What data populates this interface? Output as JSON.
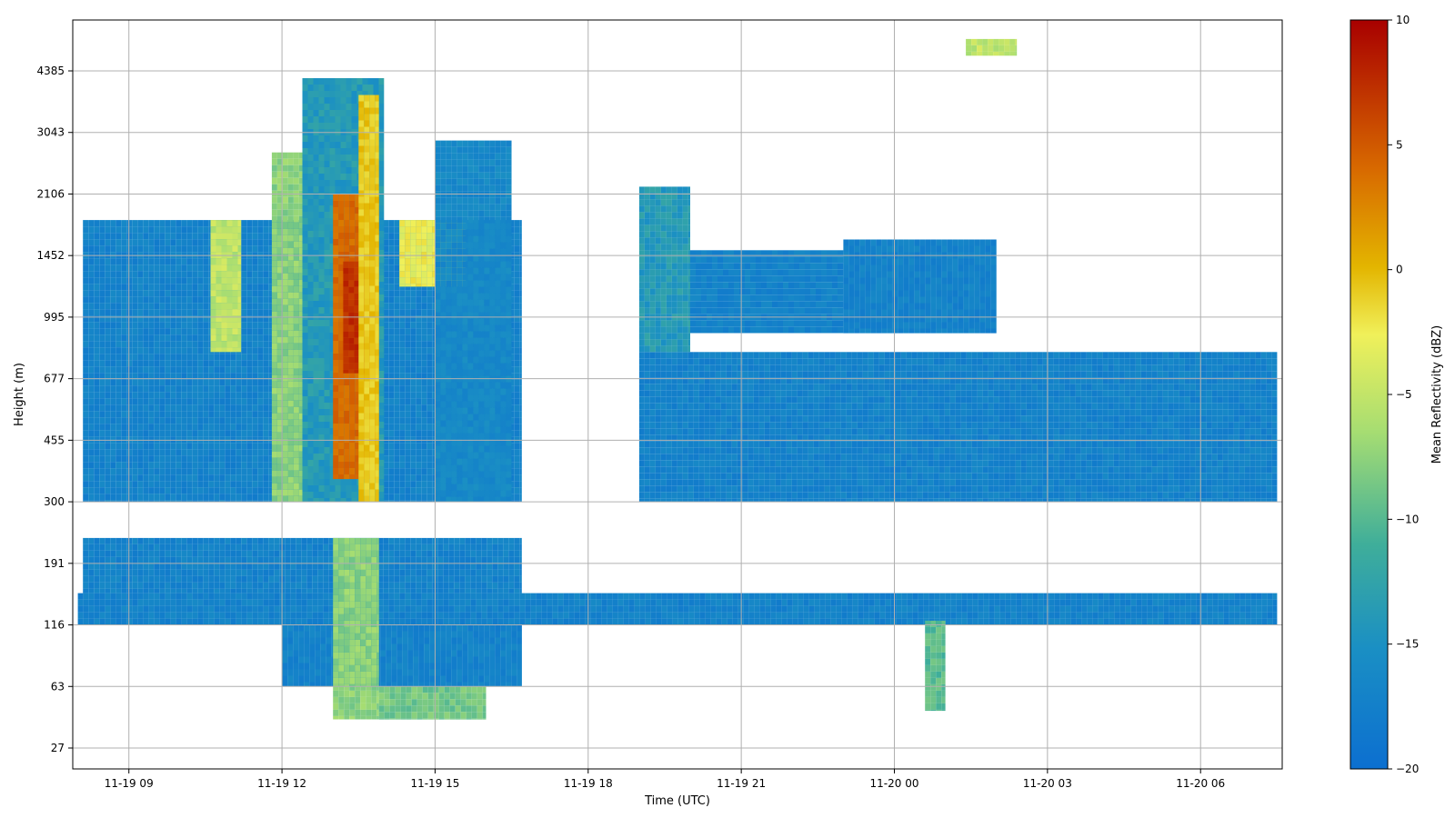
{
  "chart_data": {
    "type": "heatmap",
    "title": "",
    "xlabel": "Time (UTC)",
    "ylabel": "Height (m)",
    "x_range_hours": [
      7.9,
      31.6
    ],
    "x_ticks": [
      {
        "hour": 9,
        "label": "11-19 09"
      },
      {
        "hour": 12,
        "label": "11-19 12"
      },
      {
        "hour": 15,
        "label": "11-19 15"
      },
      {
        "hour": 18,
        "label": "11-19 18"
      },
      {
        "hour": 21,
        "label": "11-19 21"
      },
      {
        "hour": 24,
        "label": "11-20 00"
      },
      {
        "hour": 27,
        "label": "11-20 03"
      },
      {
        "hour": 30,
        "label": "11-20 06"
      }
    ],
    "y_ticks": [
      "27",
      "63",
      "116",
      "191",
      "300",
      "455",
      "677",
      "995",
      "1452",
      "2106",
      "3043",
      "4385"
    ],
    "y_scale": "log-like (non-uniform height bins)",
    "grid": true,
    "colorbar": {
      "label": "Mean Reflectivity (dBZ)",
      "range": [
        -20,
        10
      ],
      "ticks": [
        "10",
        "5",
        "0",
        "−5",
        "−10",
        "−15",
        "−20"
      ],
      "colormap": "blue-green-yellow-red"
    },
    "regions": [
      {
        "start": 8.1,
        "end": 16.7,
        "bottom": 300,
        "top": 1800,
        "dbz": -17
      },
      {
        "start": 11.8,
        "end": 12.4,
        "bottom": 300,
        "top": 2700,
        "dbz": -9
      },
      {
        "start": 12.4,
        "end": 14.0,
        "bottom": 300,
        "top": 4200,
        "dbz": -14
      },
      {
        "start": 13.0,
        "end": 13.9,
        "bottom": 350,
        "top": 2100,
        "dbz": 3
      },
      {
        "start": 13.2,
        "end": 13.7,
        "bottom": 700,
        "top": 1400,
        "dbz": 7
      },
      {
        "start": 13.5,
        "end": 13.9,
        "bottom": 300,
        "top": 3800,
        "dbz": -3
      },
      {
        "start": 10.6,
        "end": 11.2,
        "bottom": 800,
        "top": 1800,
        "dbz": -7
      },
      {
        "start": 14.3,
        "end": 15.6,
        "bottom": 1200,
        "top": 1800,
        "dbz": -5
      },
      {
        "start": 15.0,
        "end": 16.5,
        "bottom": 300,
        "top": 2900,
        "dbz": -16
      },
      {
        "start": 19.0,
        "end": 31.5,
        "bottom": 300,
        "top": 800,
        "dbz": -17
      },
      {
        "start": 19.0,
        "end": 20.0,
        "bottom": 800,
        "top": 2200,
        "dbz": -14
      },
      {
        "start": 20.0,
        "end": 23.0,
        "bottom": 900,
        "top": 1500,
        "dbz": -17
      },
      {
        "start": 23.0,
        "end": 26.0,
        "bottom": 900,
        "top": 1600,
        "dbz": -17
      },
      {
        "start": 8.0,
        "end": 31.5,
        "bottom": 116,
        "top": 150,
        "dbz": -17
      },
      {
        "start": 8.1,
        "end": 16.7,
        "bottom": 150,
        "top": 230,
        "dbz": -17
      },
      {
        "start": 12.0,
        "end": 16.7,
        "bottom": 63,
        "top": 116,
        "dbz": -17
      },
      {
        "start": 13.0,
        "end": 13.9,
        "bottom": 40,
        "top": 230,
        "dbz": -9
      },
      {
        "start": 13.9,
        "end": 16.0,
        "bottom": 40,
        "top": 63,
        "dbz": -10
      },
      {
        "start": 24.6,
        "end": 25.0,
        "bottom": 45,
        "top": 120,
        "dbz": -11
      },
      {
        "start": 25.4,
        "end": 26.4,
        "bottom": 4800,
        "top": 5300,
        "dbz": -7
      }
    ]
  }
}
